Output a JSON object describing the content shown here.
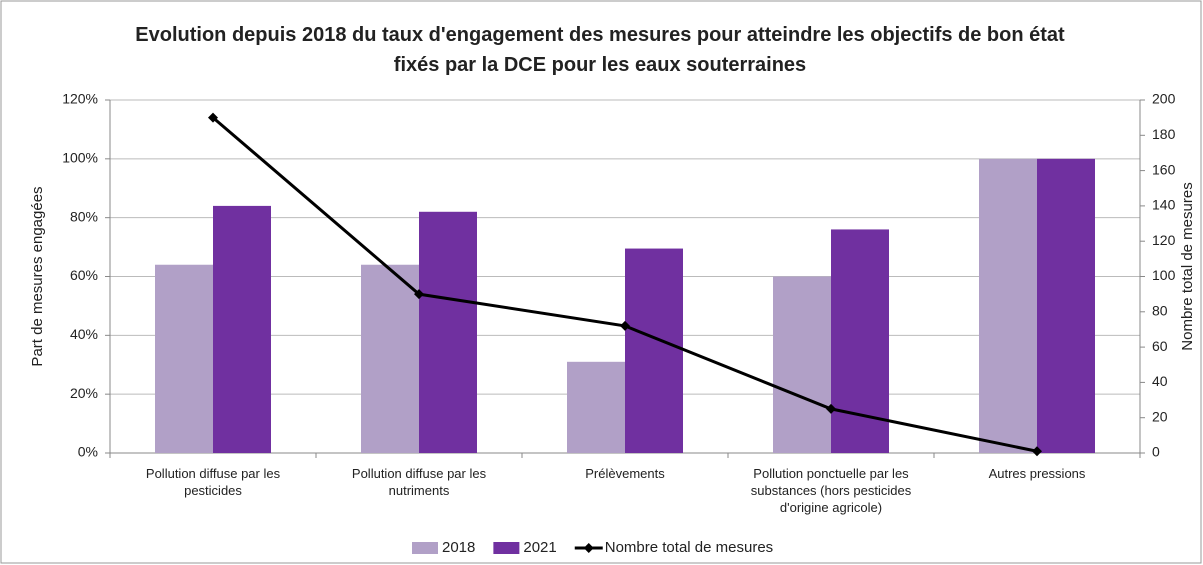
{
  "chart_data": {
    "type": "bar_line",
    "title": "Evolution depuis 2018 du taux d'engagement des mesures pour atteindre les objectifs de bon état fixés par la DCE pour les eaux souterraines",
    "ylabel": "Part de mesures engagées",
    "y2label": "Nombre total de mesures",
    "categories": [
      "Pollution diffuse par les pesticides",
      "Pollution diffuse par les nutriments",
      "Prélèvements",
      "Pollution ponctuelle par les substances (hors pesticides d'origine agricole)",
      "Autres pressions"
    ],
    "series": [
      {
        "name": "2018",
        "color": "#b1a0c7",
        "kind": "bar",
        "values": [
          64,
          64,
          31,
          60,
          100
        ]
      },
      {
        "name": "2021",
        "color": "#7030a0",
        "kind": "bar",
        "values": [
          84,
          82,
          69.5,
          76,
          100
        ]
      },
      {
        "name": "Nombre total de mesures",
        "color": "#000000",
        "kind": "line",
        "axis": "y2",
        "values": [
          190,
          90,
          72,
          25,
          1
        ]
      }
    ],
    "ylim": [
      0,
      120
    ],
    "yticks": [
      {
        "value": 0,
        "label": "0%"
      },
      {
        "value": 20,
        "label": "20%"
      },
      {
        "value": 40,
        "label": "40%"
      },
      {
        "value": 60,
        "label": "60%"
      },
      {
        "value": 80,
        "label": "80%"
      },
      {
        "value": 100,
        "label": "100%"
      },
      {
        "value": 120,
        "label": "120%"
      }
    ],
    "y2lim": [
      0,
      200
    ],
    "y2ticks": [
      0,
      20,
      40,
      60,
      80,
      100,
      120,
      140,
      160,
      180,
      200
    ],
    "grid": true,
    "legend": "bottom"
  }
}
